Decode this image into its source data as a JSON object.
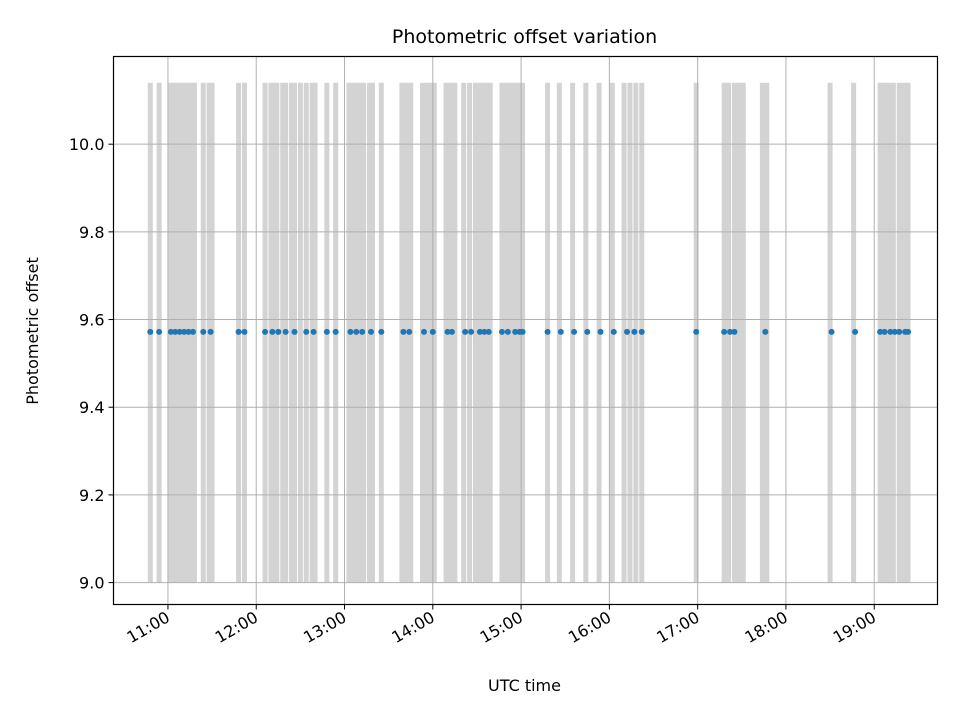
{
  "chart_data": {
    "type": "scatter",
    "title": "Photometric offset variation",
    "xlabel": "UTC time",
    "ylabel": "Photometric offset",
    "x_ticks": [
      "11:00",
      "12:00",
      "13:00",
      "14:00",
      "15:00",
      "16:00",
      "17:00",
      "18:00",
      "19:00"
    ],
    "x_tick_hours": [
      11,
      12,
      13,
      14,
      15,
      16,
      17,
      18,
      19
    ],
    "y_ticks": [
      "9.0",
      "9.2",
      "9.4",
      "9.6",
      "9.8",
      "10.0"
    ],
    "y_tick_values": [
      9.0,
      9.2,
      9.4,
      9.6,
      9.8,
      10.0
    ],
    "xlim": [
      "10:23",
      "19:43"
    ],
    "ylim": [
      8.95,
      10.2
    ],
    "grid": true,
    "colors": {
      "points": "#1f77b4",
      "bands": "#d3d3d3",
      "grid": "#b0b0b0"
    },
    "bands": {
      "y_range": [
        9.0,
        10.14
      ],
      "times": [
        "10:48",
        "10:54",
        "11:02",
        "11:04",
        "11:06",
        "11:08",
        "11:10",
        "11:12",
        "11:14",
        "11:16",
        "11:18",
        "11:24",
        "11:28",
        "11:30",
        "11:48",
        "11:52",
        "12:06",
        "12:10",
        "12:12",
        "12:14",
        "12:18",
        "12:20",
        "12:24",
        "12:26",
        "12:30",
        "12:34",
        "12:38",
        "12:40",
        "12:48",
        "12:54",
        "13:03",
        "13:05",
        "13:07",
        "13:09",
        "13:11",
        "13:13",
        "13:17",
        "13:19",
        "13:25",
        "13:39",
        "13:41",
        "13:43",
        "13:45",
        "13:53",
        "13:56",
        "13:59",
        "14:01",
        "14:09",
        "14:11",
        "14:13",
        "14:15",
        "14:21",
        "14:25",
        "14:29",
        "14:31",
        "14:33",
        "14:35",
        "14:37",
        "14:39",
        "14:47",
        "14:49",
        "14:51",
        "14:53",
        "14:55",
        "14:57",
        "14:59",
        "15:01",
        "15:18",
        "15:26",
        "15:35",
        "15:44",
        "15:53",
        "16:02",
        "16:10",
        "16:14",
        "16:18",
        "16:22",
        "16:59",
        "17:18",
        "17:21",
        "17:25",
        "17:28",
        "17:31",
        "17:44",
        "17:47",
        "18:30",
        "18:46",
        "19:04",
        "19:07",
        "19:10",
        "19:13",
        "19:17",
        "19:20",
        "19:23"
      ]
    },
    "points": {
      "y": 9.572,
      "times": [
        "10:48",
        "10:54",
        "11:02",
        "11:05",
        "11:08",
        "11:11",
        "11:14",
        "11:17",
        "11:24",
        "11:29",
        "11:48",
        "11:52",
        "12:06",
        "12:11",
        "12:15",
        "12:20",
        "12:26",
        "12:34",
        "12:39",
        "12:48",
        "12:54",
        "13:04",
        "13:08",
        "13:12",
        "13:18",
        "13:25",
        "13:40",
        "13:44",
        "13:54",
        "14:00",
        "14:10",
        "14:13",
        "14:22",
        "14:26",
        "14:32",
        "14:35",
        "14:38",
        "14:47",
        "14:51",
        "14:56",
        "14:59",
        "15:01",
        "15:18",
        "15:27",
        "15:36",
        "15:45",
        "15:54",
        "16:03",
        "16:12",
        "16:17",
        "16:22",
        "16:59",
        "17:18",
        "17:22",
        "17:25",
        "17:46",
        "18:31",
        "18:47",
        "19:04",
        "19:07",
        "19:11",
        "19:14",
        "19:17",
        "19:21",
        "19:23"
      ]
    }
  }
}
